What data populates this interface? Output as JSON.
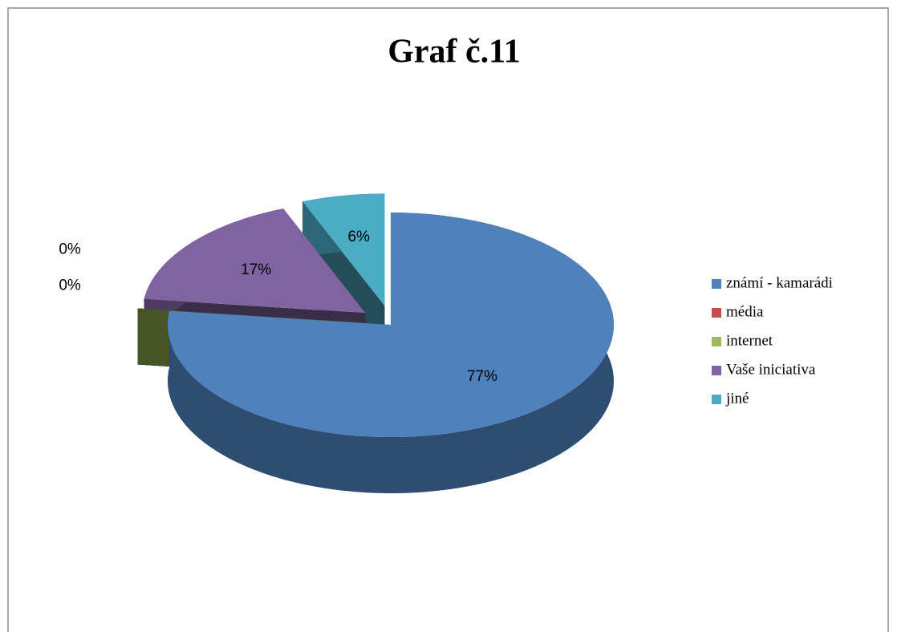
{
  "chart_data": {
    "type": "pie3d",
    "title": "Graf č.11",
    "categories": [
      "známí - kamarádi",
      "média",
      "internet",
      "Vaše iniciativa",
      "jiné"
    ],
    "values": [
      77,
      0,
      0,
      17,
      6
    ],
    "value_labels": [
      "77%",
      "0%",
      "0%",
      "17%",
      "6%"
    ],
    "colors": [
      "#4f81bd",
      "#c0504d",
      "#9bbb59",
      "#8064a2",
      "#4bacc6"
    ],
    "legend": "right"
  }
}
